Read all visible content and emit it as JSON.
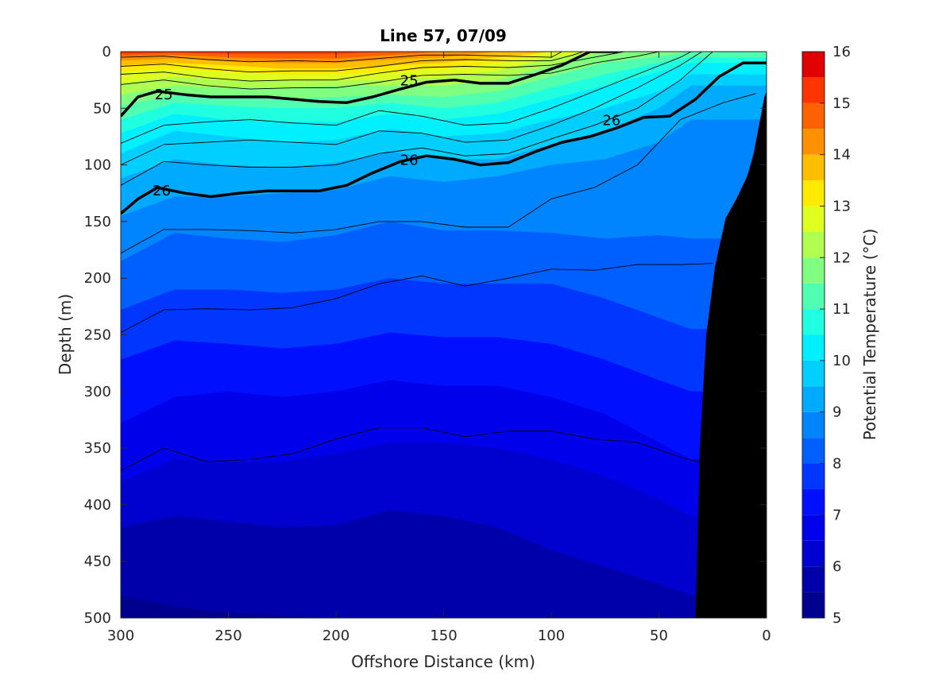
{
  "chart_data": {
    "type": "contour",
    "title": "Line 57, 07/09",
    "xlabel": "Offshore Distance (km)",
    "ylabel": "Depth (m)",
    "colorbar_label": "Potential Temperature (°C)",
    "xlim": [
      300,
      0
    ],
    "ylim": [
      500,
      0
    ],
    "clim": [
      5,
      16
    ],
    "x_ticks": [
      "300",
      "250",
      "200",
      "150",
      "100",
      "50",
      "0"
    ],
    "y_ticks": [
      "0",
      "50",
      "100",
      "150",
      "200",
      "250",
      "300",
      "350",
      "400",
      "450",
      "500"
    ],
    "colorbar_ticks": [
      "16",
      "15",
      "14",
      "13",
      "12",
      "11",
      "10",
      "9",
      "8",
      "7",
      "6",
      "5"
    ],
    "levels": [
      5,
      5.5,
      6,
      6.5,
      7,
      7.5,
      8,
      8.5,
      9,
      9.5,
      10,
      10.5,
      11,
      11.5,
      12,
      12.5,
      13,
      13.5,
      14,
      14.5,
      15,
      15.5,
      16
    ],
    "level_colors": [
      "#00008f",
      "#0000aa",
      "#0000cf",
      "#0000ea",
      "#0010ff",
      "#0036ff",
      "#0060ff",
      "#0085ff",
      "#00aaff",
      "#00cfff",
      "#00f0ff",
      "#20ffe0",
      "#50ffb0",
      "#80ff80",
      "#b0ff50",
      "#dfff20",
      "#ffea00",
      "#ffbf00",
      "#ff9000",
      "#ff6000",
      "#ff3500",
      "#e00000",
      "#b00000"
    ],
    "isotherms_depth": {
      "x": [
        300,
        275,
        250,
        225,
        200,
        175,
        150,
        125,
        100,
        75,
        50,
        35
      ],
      "t5_5": [
        480,
        490,
        495,
        498,
        500,
        500,
        500,
        500,
        500,
        500,
        500,
        500
      ],
      "t6": [
        420,
        410,
        415,
        420,
        418,
        405,
        410,
        420,
        440,
        455,
        470,
        480
      ],
      "t6_5": [
        380,
        360,
        362,
        362,
        355,
        345,
        345,
        350,
        360,
        375,
        395,
        410
      ],
      "t7": [
        328,
        305,
        300,
        305,
        300,
        290,
        295,
        295,
        305,
        320,
        345,
        360
      ],
      "t7_5": [
        272,
        255,
        258,
        262,
        258,
        248,
        252,
        252,
        258,
        272,
        290,
        300
      ],
      "t8": [
        228,
        210,
        210,
        213,
        210,
        200,
        205,
        205,
        205,
        218,
        235,
        245
      ],
      "t8_5": [
        185,
        160,
        165,
        168,
        162,
        150,
        158,
        158,
        160,
        165,
        162,
        165
      ],
      "t9": [
        145,
        128,
        128,
        125,
        122,
        110,
        115,
        110,
        100,
        95,
        80,
        60
      ],
      "t9_5": [
        112,
        95,
        100,
        102,
        98,
        88,
        95,
        95,
        82,
        70,
        50,
        30
      ],
      "t10": [
        90,
        70,
        75,
        80,
        78,
        68,
        75,
        72,
        60,
        50,
        35,
        20
      ],
      "t10_5": [
        72,
        55,
        60,
        62,
        62,
        55,
        60,
        55,
        42,
        30,
        18,
        10
      ],
      "t11": [
        60,
        45,
        48,
        50,
        50,
        45,
        50,
        45,
        32,
        20,
        10,
        5
      ],
      "t11_5": [
        48,
        38,
        40,
        42,
        40,
        38,
        40,
        35,
        22,
        10,
        4,
        0
      ],
      "t12": [
        38,
        30,
        32,
        32,
        30,
        30,
        30,
        25,
        12,
        0,
        0,
        0
      ],
      "t12_5": [
        28,
        22,
        25,
        25,
        25,
        25,
        22,
        17,
        5,
        0,
        0,
        0
      ],
      "t13": [
        18,
        15,
        18,
        20,
        20,
        18,
        15,
        10,
        0,
        0,
        0,
        0
      ],
      "t13_5": [
        12,
        10,
        12,
        15,
        15,
        12,
        10,
        5,
        0,
        0,
        0,
        0
      ],
      "t14": [
        8,
        6,
        8,
        10,
        10,
        7,
        5,
        0,
        0,
        0,
        0,
        0
      ],
      "t14_5": [
        4,
        3,
        5,
        6,
        6,
        3,
        0,
        0,
        0,
        0,
        0,
        0
      ],
      "t15": [
        2,
        1,
        2,
        2,
        2,
        0,
        0,
        0,
        0,
        0,
        0,
        0
      ],
      "t15_5": [
        0,
        0,
        0,
        0,
        0,
        0,
        0,
        0,
        0,
        0,
        0,
        0
      ]
    },
    "density_contours": [
      {
        "label": "25",
        "x": [
          300,
          292,
          283,
          270,
          258,
          245,
          232,
          220,
          208,
          195,
          183,
          170,
          158,
          145,
          133,
          120,
          107,
          95,
          82,
          69
        ],
        "depth": [
          57,
          40,
          35,
          38,
          40,
          40,
          40,
          42,
          44,
          45,
          40,
          33,
          27,
          25,
          28,
          28,
          20,
          12,
          0,
          0
        ]
      },
      {
        "label": "26",
        "x": [
          300,
          292,
          283,
          270,
          258,
          245,
          232,
          220,
          208,
          195,
          183,
          170,
          158,
          145,
          133,
          120,
          107,
          95,
          82,
          69,
          57,
          45,
          33,
          22,
          11,
          0
        ],
        "depth": [
          143,
          130,
          120,
          125,
          128,
          125,
          123,
          123,
          123,
          118,
          107,
          97,
          92,
          95,
          100,
          98,
          88,
          80,
          75,
          67,
          58,
          57,
          42,
          22,
          10,
          10
        ]
      }
    ],
    "density_labels": [
      {
        "text": "25",
        "x": 280,
        "depth": 37
      },
      {
        "text": "25",
        "x": 166,
        "depth": 25
      },
      {
        "text": "26",
        "x": 72,
        "depth": 60
      },
      {
        "text": "26",
        "x": 166,
        "depth": 95
      },
      {
        "text": "26",
        "x": 281,
        "depth": 122
      }
    ],
    "thin_contours": [
      {
        "x": [
          300,
          280,
          260,
          240,
          220,
          200,
          180,
          160,
          140,
          120,
          100,
          95
        ],
        "depth": [
          5,
          4,
          7,
          9,
          8,
          9,
          6,
          3,
          3,
          4,
          5,
          0
        ]
      },
      {
        "x": [
          300,
          280,
          260,
          240,
          220,
          200,
          180,
          160,
          140,
          120,
          100,
          90,
          85
        ],
        "depth": [
          13,
          11,
          15,
          18,
          17,
          17,
          13,
          8,
          7,
          8,
          8,
          3,
          0
        ]
      },
      {
        "x": [
          300,
          280,
          260,
          240,
          220,
          200,
          180,
          160,
          140,
          120,
          100,
          80,
          66
        ],
        "depth": [
          20,
          18,
          23,
          26,
          25,
          25,
          19,
          14,
          13,
          14,
          12,
          5,
          0
        ]
      },
      {
        "x": [
          300,
          280,
          260,
          240,
          220,
          200,
          180,
          160,
          140,
          120,
          100,
          80,
          60,
          50
        ],
        "depth": [
          29,
          25,
          30,
          33,
          32,
          32,
          27,
          21,
          20,
          21,
          19,
          10,
          4,
          0
        ]
      },
      {
        "x": [
          300,
          280,
          260,
          240,
          220,
          200,
          180,
          160,
          140,
          120,
          100,
          80,
          60,
          40,
          35
        ],
        "depth": [
          81,
          65,
          62,
          60,
          63,
          65,
          52,
          57,
          65,
          63,
          50,
          35,
          20,
          5,
          0
        ]
      },
      {
        "x": [
          300,
          280,
          260,
          240,
          220,
          200,
          180,
          160,
          140,
          120,
          100,
          80,
          60,
          40,
          30
        ],
        "depth": [
          100,
          82,
          80,
          78,
          80,
          82,
          70,
          72,
          80,
          78,
          65,
          50,
          32,
          12,
          0
        ]
      },
      {
        "x": [
          300,
          280,
          260,
          240,
          220,
          200,
          180,
          160,
          140,
          120,
          100,
          80,
          60,
          40,
          25
        ],
        "depth": [
          118,
          97,
          100,
          102,
          102,
          100,
          90,
          85,
          92,
          90,
          77,
          65,
          50,
          25,
          0
        ]
      },
      {
        "x": [
          300,
          280,
          260,
          240,
          220,
          200,
          180,
          160,
          140,
          120,
          100,
          80,
          60,
          40,
          20,
          5
        ],
        "depth": [
          178,
          157,
          157,
          158,
          160,
          157,
          150,
          150,
          155,
          155,
          130,
          120,
          100,
          60,
          45,
          37
        ]
      },
      {
        "x": [
          300,
          280,
          260,
          240,
          220,
          200,
          180,
          160,
          140,
          120,
          100,
          80,
          60,
          40,
          25
        ],
        "depth": [
          248,
          228,
          227,
          228,
          226,
          218,
          205,
          198,
          207,
          200,
          192,
          193,
          188,
          188,
          187
        ]
      },
      {
        "x": [
          300,
          280,
          260,
          240,
          220,
          200,
          180,
          160,
          140,
          120,
          100,
          80,
          60,
          40,
          30
        ],
        "depth": [
          370,
          350,
          362,
          360,
          355,
          342,
          332,
          332,
          340,
          335,
          335,
          342,
          345,
          358,
          363
        ]
      }
    ],
    "bottom_topography": {
      "x": [
        33,
        31,
        28,
        24,
        19,
        14,
        9,
        6,
        3,
        1,
        0
      ],
      "depth": [
        500,
        350,
        250,
        190,
        147,
        130,
        110,
        90,
        60,
        40,
        35
      ]
    }
  }
}
